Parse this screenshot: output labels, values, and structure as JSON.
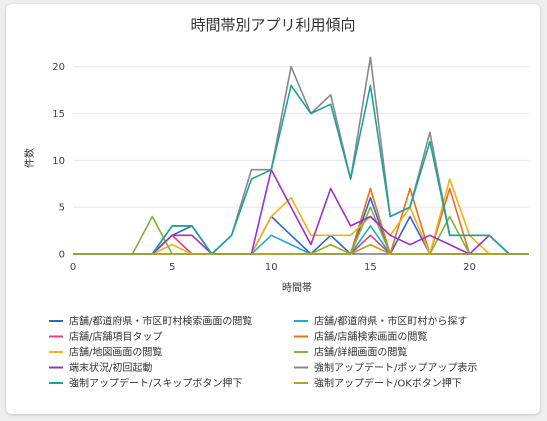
{
  "chart_data": {
    "type": "line",
    "title": "時間帯別アプリ利用傾向",
    "xlabel": "時間帯",
    "ylabel": "件数",
    "xlim": [
      0,
      23
    ],
    "ylim": [
      0,
      22
    ],
    "xticks": [
      "0",
      "5",
      "10",
      "15",
      "20"
    ],
    "yticks": [
      "0",
      "5",
      "10",
      "15",
      "20"
    ],
    "grid": true,
    "legend_position": "bottom",
    "x": [
      0,
      1,
      2,
      3,
      4,
      5,
      6,
      7,
      8,
      9,
      10,
      11,
      12,
      13,
      14,
      15,
      16,
      17,
      18,
      19,
      20,
      21,
      22,
      23
    ],
    "series": [
      {
        "name": "店舗/都道府県・市区町村検索画面の閲覧",
        "color": "#3366cc",
        "values": [
          0,
          0,
          0,
          0,
          0,
          2,
          3,
          0,
          0,
          0,
          4,
          2,
          0,
          2,
          0,
          6,
          0,
          4,
          0,
          0,
          0,
          0,
          0,
          0
        ]
      },
      {
        "name": "店舗/都道府県・市区町村から探す",
        "color": "#22aacc",
        "values": [
          0,
          0,
          0,
          0,
          0,
          0,
          0,
          0,
          0,
          0,
          2,
          1,
          0,
          0,
          0,
          3,
          0,
          0,
          0,
          0,
          0,
          0,
          0,
          0
        ]
      },
      {
        "name": "店舗/店舗項目タップ",
        "color": "#dd4477",
        "values": [
          0,
          0,
          0,
          0,
          0,
          2,
          0,
          0,
          0,
          0,
          0,
          0,
          0,
          0,
          0,
          2,
          0,
          0,
          0,
          0,
          0,
          0,
          0,
          0
        ]
      },
      {
        "name": "店舗/店舗検索画面の閲覧",
        "color": "#e8711a",
        "values": [
          0,
          0,
          0,
          0,
          0,
          0,
          0,
          0,
          0,
          0,
          0,
          0,
          0,
          0,
          0,
          7,
          0,
          7,
          0,
          7,
          0,
          0,
          0,
          0
        ]
      },
      {
        "name": "店舗/地図画面の閲覧",
        "color": "#f2b01e",
        "values": [
          0,
          0,
          0,
          0,
          0,
          1,
          0,
          0,
          0,
          0,
          4,
          6,
          2,
          2,
          2,
          4,
          2,
          5,
          0,
          8,
          2,
          0,
          0,
          0
        ]
      },
      {
        "name": "店舗/詳細画面の閲覧",
        "color": "#7cb342",
        "values": [
          0,
          0,
          0,
          0,
          4,
          0,
          0,
          0,
          0,
          0,
          0,
          0,
          0,
          0,
          0,
          5,
          0,
          0,
          0,
          4,
          0,
          0,
          0,
          0
        ]
      },
      {
        "name": "端末状況/初回起動",
        "color": "#9933cc",
        "values": [
          0,
          0,
          0,
          0,
          0,
          2,
          2,
          0,
          0,
          0,
          9,
          5,
          1,
          7,
          3,
          4,
          2,
          1,
          2,
          1,
          0,
          2,
          0,
          0
        ]
      },
      {
        "name": "強制アップデート/ポップアップ表示",
        "color": "#888888",
        "values": [
          0,
          0,
          0,
          0,
          0,
          3,
          3,
          0,
          2,
          9,
          9,
          20,
          15,
          17,
          8,
          21,
          4,
          5,
          13,
          2,
          2,
          2,
          0,
          0
        ]
      },
      {
        "name": "強制アップデート/スキップボタン押下",
        "color": "#1aa39a",
        "values": [
          0,
          0,
          0,
          0,
          0,
          3,
          3,
          0,
          2,
          8,
          9,
          18,
          15,
          16,
          8,
          18,
          4,
          5,
          12,
          2,
          2,
          2,
          0,
          0
        ]
      },
      {
        "name": "強制アップデート/OKボタン押下",
        "color": "#a8a81e",
        "values": [
          0,
          0,
          0,
          0,
          0,
          0,
          0,
          0,
          0,
          0,
          0,
          0,
          0,
          1,
          0,
          1,
          0,
          0,
          0,
          0,
          0,
          0,
          0,
          0
        ]
      }
    ]
  }
}
